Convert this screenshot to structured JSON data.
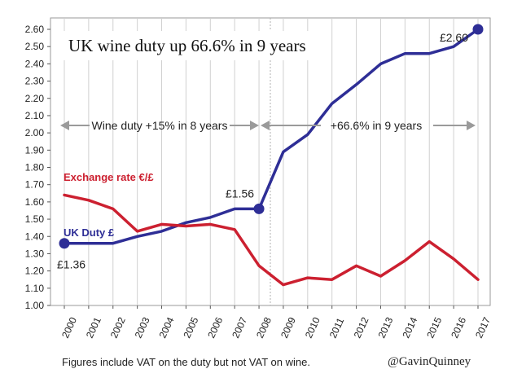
{
  "chart_data": {
    "type": "line",
    "title": "UK wine duty up 66.6% in 9 years",
    "categories": [
      "2000",
      "2001",
      "2002",
      "2003",
      "2004",
      "2005",
      "2006",
      "2007",
      "2008",
      "2009",
      "2010",
      "2011",
      "2012",
      "2013",
      "2014",
      "2015",
      "2016",
      "2017"
    ],
    "yticks": [
      "1.00",
      "1.10",
      "1.20",
      "1.30",
      "1.40",
      "1.50",
      "1.60",
      "1.70",
      "1.80",
      "1.90",
      "2.00",
      "2.10",
      "2.20",
      "2.30",
      "2.40",
      "2.50",
      "2.60"
    ],
    "ylim": [
      1.0,
      2.6
    ],
    "grid": "vertical",
    "series": [
      {
        "name": "UK Duty £",
        "color": "#2e2e96",
        "values": [
          1.36,
          1.36,
          1.36,
          1.4,
          1.43,
          1.48,
          1.51,
          1.56,
          1.56,
          1.89,
          1.99,
          2.17,
          2.28,
          2.4,
          2.46,
          2.46,
          2.5,
          2.6
        ]
      },
      {
        "name": "Exchange rate €/£",
        "color": "#cc2030",
        "values": [
          1.64,
          1.61,
          1.56,
          1.43,
          1.47,
          1.46,
          1.47,
          1.44,
          1.23,
          1.12,
          1.16,
          1.15,
          1.23,
          1.17,
          1.26,
          1.37,
          1.27,
          1.15
        ]
      }
    ],
    "markers": [
      {
        "series": 0,
        "index": 0,
        "label": "£1.36"
      },
      {
        "series": 0,
        "index": 8,
        "label": "£1.56"
      },
      {
        "series": 0,
        "index": 17,
        "label": "£2.60"
      }
    ],
    "annotations": {
      "period1": "Wine duty  +15% in 8 years",
      "period2": "+66.6% in 9 years"
    },
    "footnote": "Figures include VAT on the duty but not VAT on wine.",
    "credit": "@GavinQuinney"
  }
}
